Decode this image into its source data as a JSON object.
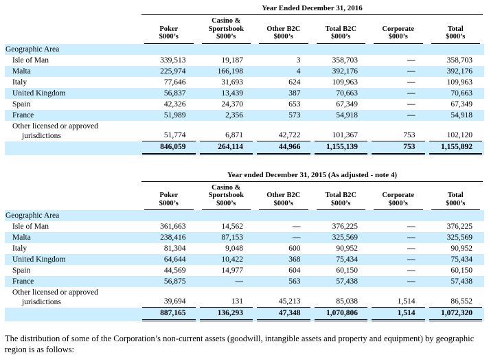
{
  "colors": {
    "row_highlight": "#cceeff",
    "text": "#000000",
    "background": "#ffffff"
  },
  "tables": [
    {
      "period_title": "Year Ended December 31, 2016",
      "section_label": "Geographic Area",
      "columns": [
        {
          "name": "Poker",
          "unit": "$000’s"
        },
        {
          "name": "Casino &\nSportsbook",
          "unit": "$000’s"
        },
        {
          "name": "Other B2C",
          "unit": "$000’s"
        },
        {
          "name": "Total B2C",
          "unit": "$000’s"
        },
        {
          "name": "Corporate",
          "unit": "$000’s"
        },
        {
          "name": "Total",
          "unit": "$000’s"
        }
      ],
      "rows": [
        {
          "label": "Isle of Man",
          "values": [
            "339,513",
            "19,187",
            "3",
            "358,703",
            "—",
            "358,703"
          ]
        },
        {
          "label": "Malta",
          "values": [
            "225,974",
            "166,198",
            "4",
            "392,176",
            "—",
            "392,176"
          ]
        },
        {
          "label": "Italy",
          "values": [
            "77,646",
            "31,693",
            "624",
            "109,963",
            "—",
            "109,963"
          ]
        },
        {
          "label": "United Kingdom",
          "values": [
            "56,837",
            "13,439",
            "387",
            "70,663",
            "—",
            "70,663"
          ]
        },
        {
          "label": "Spain",
          "values": [
            "42,326",
            "24,370",
            "653",
            "67,349",
            "—",
            "67,349"
          ]
        },
        {
          "label": "France",
          "values": [
            "51,989",
            "2,356",
            "573",
            "54,918",
            "—",
            "54,918"
          ]
        },
        {
          "label": "Other licensed or approved jurisdictions",
          "values": [
            "51,774",
            "6,871",
            "42,722",
            "101,367",
            "753",
            "102,120"
          ]
        }
      ],
      "total_row": {
        "values": [
          "846,059",
          "264,114",
          "44,966",
          "1,155,139",
          "753",
          "1,155,892"
        ]
      }
    },
    {
      "period_title": "Year ended December 31, 2015 (As adjusted - note 4)",
      "section_label": "Geographic Area",
      "columns": [
        {
          "name": "Poker",
          "unit": "$000’s"
        },
        {
          "name": "Casino &\nSportsbook",
          "unit": "$000’s"
        },
        {
          "name": "Other B2C",
          "unit": "$000’s"
        },
        {
          "name": "Total B2C",
          "unit": "$000’s"
        },
        {
          "name": "Corporate",
          "unit": "$000’s"
        },
        {
          "name": "Total",
          "unit": "$000’s"
        }
      ],
      "rows": [
        {
          "label": "Isle of Man",
          "values": [
            "361,663",
            "14,562",
            "—",
            "376,225",
            "—",
            "376,225"
          ]
        },
        {
          "label": "Malta",
          "values": [
            "238,416",
            "87,153",
            "—",
            "325,569",
            "—",
            "325,569"
          ]
        },
        {
          "label": "Italy",
          "values": [
            "81,304",
            "9,048",
            "600",
            "90,952",
            "—",
            "90,952"
          ]
        },
        {
          "label": "United Kingdom",
          "values": [
            "64,644",
            "10,422",
            "368",
            "75,434",
            "—",
            "75,434"
          ]
        },
        {
          "label": "Spain",
          "values": [
            "44,569",
            "14,977",
            "604",
            "60,150",
            "—",
            "60,150"
          ]
        },
        {
          "label": "France",
          "values": [
            "56,875",
            "—",
            "563",
            "57,438",
            "—",
            "57,438"
          ]
        },
        {
          "label": "Other licensed or approved jurisdictions",
          "values": [
            "39,694",
            "131",
            "45,213",
            "85,038",
            "1,514",
            "86,552"
          ]
        }
      ],
      "total_row": {
        "values": [
          "887,165",
          "136,293",
          "47,348",
          "1,070,806",
          "1,514",
          "1,072,320"
        ]
      }
    }
  ],
  "footer_text": "The distribution of some of the Corporation’s non-current assets (goodwill, intangible assets and property and equipment) by geographic region is as follows:"
}
